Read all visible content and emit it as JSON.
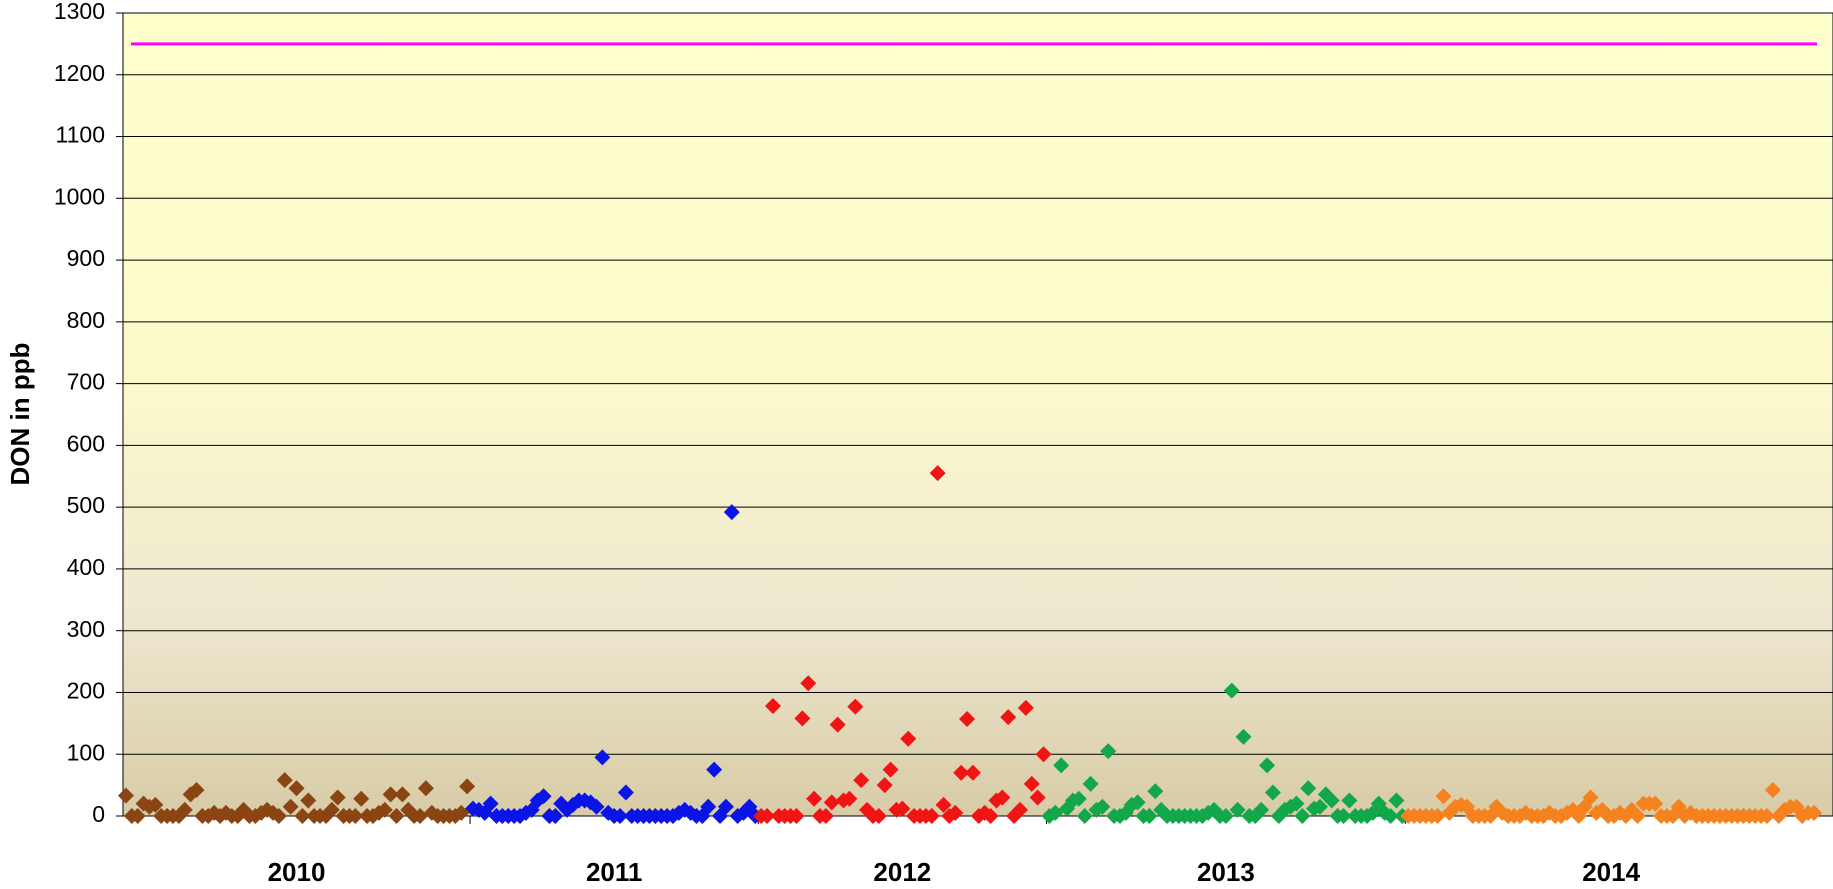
{
  "chart_data": {
    "type": "scatter",
    "y_label": "DON in ppb",
    "categories": [
      "2010",
      "2011",
      "2012",
      "2013",
      "2014"
    ],
    "ylim": [
      0,
      1300
    ],
    "yticks": [
      0,
      100,
      200,
      300,
      400,
      500,
      600,
      700,
      800,
      900,
      1000,
      1100,
      1200,
      1300
    ],
    "grid": true,
    "reference_line": {
      "value": 1250,
      "color": "#ff00ff"
    },
    "series": [
      {
        "color": "#8b4513",
        "values": [
          33,
          0,
          0,
          20,
          15,
          18,
          0,
          0,
          0,
          0,
          10,
          35,
          42,
          0,
          0,
          5,
          0,
          5,
          0,
          0,
          10,
          0,
          0,
          5,
          10,
          5,
          0,
          58,
          15,
          45,
          0,
          25,
          0,
          0,
          0,
          10,
          30,
          0,
          0,
          0,
          28,
          0,
          0,
          5,
          10,
          35,
          0,
          35,
          10,
          0,
          0,
          45,
          5,
          0,
          0,
          0,
          0,
          5,
          48
        ]
      },
      {
        "color": "#0a14e6",
        "values": [
          12,
          10,
          5,
          20,
          0,
          0,
          0,
          0,
          0,
          5,
          10,
          25,
          32,
          0,
          0,
          20,
          10,
          18,
          25,
          25,
          22,
          15,
          95,
          5,
          0,
          0,
          38,
          0,
          0,
          0,
          0,
          0,
          0,
          0,
          0,
          5,
          10,
          5,
          0,
          0,
          15,
          75,
          0,
          15,
          492,
          0,
          5,
          15,
          0
        ]
      },
      {
        "color": "#f01414",
        "values": [
          0,
          0,
          178,
          0,
          0,
          0,
          0,
          158,
          215,
          28,
          0,
          0,
          22,
          148,
          25,
          28,
          177,
          58,
          10,
          0,
          0,
          50,
          75,
          10,
          12,
          125,
          0,
          0,
          0,
          0,
          555,
          18,
          0,
          5,
          70,
          157,
          70,
          0,
          5,
          0,
          25,
          30,
          160,
          0,
          10,
          175,
          52,
          30,
          100
        ]
      },
      {
        "color": "#12a84a",
        "values": [
          0,
          5,
          82,
          12,
          25,
          28,
          0,
          52,
          10,
          15,
          105,
          0,
          0,
          5,
          18,
          22,
          0,
          0,
          40,
          10,
          0,
          0,
          0,
          0,
          0,
          0,
          0,
          5,
          10,
          0,
          0,
          203,
          10,
          128,
          0,
          0,
          10,
          82,
          38,
          0,
          10,
          15,
          20,
          0,
          45,
          12,
          15,
          35,
          25,
          0,
          0,
          25,
          0,
          0,
          0,
          5,
          20,
          5,
          0,
          25,
          0
        ]
      },
      {
        "color": "#f5821e",
        "values": [
          0,
          0,
          0,
          0,
          0,
          0,
          32,
          5,
          15,
          18,
          15,
          0,
          0,
          0,
          0,
          15,
          5,
          0,
          0,
          0,
          5,
          0,
          0,
          0,
          5,
          0,
          0,
          5,
          10,
          0,
          15,
          30,
          5,
          10,
          0,
          0,
          5,
          0,
          10,
          0,
          20,
          20,
          20,
          0,
          0,
          0,
          15,
          0,
          5,
          0,
          0,
          0,
          0,
          0,
          0,
          0,
          0,
          0,
          0,
          0,
          0,
          0,
          42,
          0,
          10,
          15,
          15,
          0,
          5,
          5
        ]
      }
    ]
  }
}
